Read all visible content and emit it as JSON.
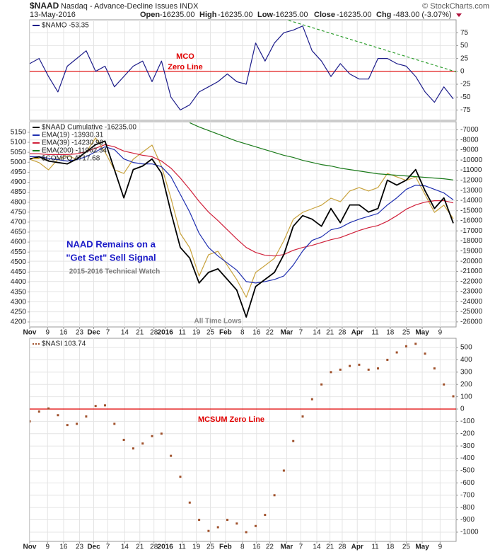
{
  "header": {
    "symbol": "$NAAD",
    "description": "Nasdaq - Advance-Decline Issues INDX",
    "credit": "© StockCharts.com",
    "date": "13-May-2016",
    "quote": [
      {
        "label": "Open",
        "value": "-16235.00"
      },
      {
        "label": "High",
        "value": "-16235.00"
      },
      {
        "label": "Low",
        "value": "-16235.00"
      },
      {
        "label": "Close",
        "value": "-16235.00"
      },
      {
        "label": "Chg",
        "value": "-483.00 (-3.07%)"
      }
    ]
  },
  "annotations": [
    "MCO",
    "Zero Line",
    "NAAD Remains on a",
    "\"Get Set\" Sell Signal",
    "2015-2016 Technical Watch",
    "All Time Lows",
    "MCSUM Zero Line"
  ],
  "chart_data": [
    {
      "type": "line",
      "xlim": [
        0,
        45.3
      ],
      "ylim": [
        -95,
        100
      ],
      "yticks": [
        75,
        50,
        25,
        0,
        -25,
        -50,
        -75
      ],
      "grid": true,
      "series": [
        {
          "name": "$NAMO -53.35",
          "color": "#1c1c8a",
          "values": [
            15,
            25,
            -10,
            -40,
            10,
            25,
            40,
            0,
            10,
            -30,
            -10,
            10,
            20,
            -20,
            20,
            -50,
            -75,
            -65,
            -40,
            -30,
            -20,
            -5,
            -20,
            -25,
            55,
            20,
            55,
            75,
            80,
            88,
            40,
            20,
            -10,
            15,
            -5,
            -15,
            -15,
            25,
            25,
            15,
            10,
            -10,
            -40,
            -60,
            -30,
            -53.35
          ]
        }
      ],
      "hlines": [
        {
          "value": 0,
          "color": "#e00000"
        }
      ],
      "trendline": {
        "x": [
          27.5,
          45.3
        ],
        "y": [
          99,
          -1
        ],
        "color": "#2e9e2e"
      }
    },
    {
      "type": "line",
      "xlim": [
        0,
        45.3
      ],
      "ylim": [
        -26500,
        -6200
      ],
      "yticks": [
        -7000,
        -8000,
        -9000,
        -10000,
        -11000,
        -12000,
        -13000,
        -14000,
        -15000,
        -16000,
        -17000,
        -18000,
        -19000,
        -20000,
        -21000,
        -22000,
        -23000,
        -24000,
        -25000,
        -26000
      ],
      "y2lim": [
        4175,
        5203
      ],
      "y2ticks": [
        5150,
        5100,
        5050,
        5000,
        4950,
        4900,
        4850,
        4800,
        4750,
        4700,
        4650,
        4600,
        4550,
        4500,
        4450,
        4400,
        4350,
        4300,
        4250,
        4200
      ],
      "grid": true,
      "xticks": [
        {
          "value": 0,
          "label": "Nov"
        },
        {
          "value": 1.9,
          "label": "9"
        },
        {
          "value": 3.6,
          "label": "16"
        },
        {
          "value": 5.3,
          "label": "23"
        },
        {
          "value": 6.8,
          "label": "Dec"
        },
        {
          "value": 8.3,
          "label": "7"
        },
        {
          "value": 10.1,
          "label": "14"
        },
        {
          "value": 11.7,
          "label": "21"
        },
        {
          "value": 13.2,
          "label": "28"
        },
        {
          "value": 14.4,
          "label": "2016"
        },
        {
          "value": 16.2,
          "label": "11"
        },
        {
          "value": 17.7,
          "label": "19"
        },
        {
          "value": 19.2,
          "label": "25"
        },
        {
          "value": 20.8,
          "label": "Feb"
        },
        {
          "value": 22.6,
          "label": "8"
        },
        {
          "value": 24.1,
          "label": "16"
        },
        {
          "value": 25.5,
          "label": "22"
        },
        {
          "value": 27.3,
          "label": "Mar"
        },
        {
          "value": 28.8,
          "label": "7"
        },
        {
          "value": 30.5,
          "label": "14"
        },
        {
          "value": 31.9,
          "label": "21"
        },
        {
          "value": 33.2,
          "label": "28"
        },
        {
          "value": 34.8,
          "label": "Apr"
        },
        {
          "value": 36.7,
          "label": "11"
        },
        {
          "value": 38.3,
          "label": "18"
        },
        {
          "value": 40.0,
          "label": "25"
        },
        {
          "value": 41.7,
          "label": "May"
        },
        {
          "value": 43.6,
          "label": "9"
        }
      ],
      "series": [
        {
          "name": "$COMPQ 4717.68",
          "color": "#c8a23c",
          "axis": "y2",
          "values": [
            5015,
            4998,
            4962,
            5015,
            5033,
            5015,
            5051,
            5122,
            5051,
            4962,
            4944,
            5015,
            5051,
            5086,
            4980,
            4820,
            4643,
            4572,
            4430,
            4537,
            4554,
            4483,
            4412,
            4324,
            4448,
            4483,
            4519,
            4607,
            4714,
            4749,
            4767,
            4785,
            4820,
            4802,
            4856,
            4873,
            4856,
            4873,
            4944,
            4927,
            4909,
            4927,
            4838,
            4749,
            4785,
            4717.68
          ]
        },
        {
          "name": "EMA(200) -11962.34",
          "color": "#1a7a1a",
          "values": [
            null,
            null,
            null,
            null,
            null,
            null,
            null,
            null,
            null,
            null,
            null,
            null,
            null,
            null,
            null,
            null,
            null,
            -6300,
            -6720,
            -7070,
            -7420,
            -7770,
            -8120,
            -8400,
            -8680,
            -8960,
            -9240,
            -9520,
            -9730,
            -10020,
            -10230,
            -10440,
            -10580,
            -10790,
            -10930,
            -11070,
            -11210,
            -11350,
            -11420,
            -11490,
            -11560,
            -11630,
            -11700,
            -11770,
            -11840,
            -11962.34
          ]
        },
        {
          "name": "EMA(39) -14230.99",
          "color": "#d0203a",
          "values": [
            -9380,
            -9380,
            -9450,
            -9450,
            -9450,
            -9380,
            -9170,
            -8820,
            -8470,
            -8680,
            -9100,
            -9310,
            -9520,
            -9660,
            -10090,
            -10790,
            -11770,
            -12890,
            -14080,
            -15140,
            -15980,
            -16890,
            -17800,
            -18640,
            -19130,
            -19410,
            -19480,
            -19340,
            -18920,
            -18640,
            -18430,
            -18150,
            -17870,
            -17660,
            -17310,
            -16960,
            -16680,
            -16470,
            -16050,
            -15490,
            -14850,
            -14430,
            -14150,
            -14010,
            -14010,
            -14230.99
          ]
        },
        {
          "name": "EMA(19) -13930.31",
          "color": "#1f2fb0",
          "values": [
            -9660,
            -9660,
            -9810,
            -9950,
            -10090,
            -9950,
            -9660,
            -9170,
            -8680,
            -8960,
            -9880,
            -10230,
            -10370,
            -10370,
            -10650,
            -11630,
            -13380,
            -15140,
            -17240,
            -18640,
            -19480,
            -20180,
            -20880,
            -22010,
            -22150,
            -22010,
            -21800,
            -21450,
            -20390,
            -18990,
            -17940,
            -17590,
            -16890,
            -16680,
            -16190,
            -15840,
            -15560,
            -15280,
            -14430,
            -13730,
            -12890,
            -12470,
            -12540,
            -12890,
            -13240,
            -13930.31
          ]
        },
        {
          "name": "$NAAD Cumulative -16235.00",
          "color": "#000000",
          "values": [
            -9880,
            -9670,
            -10090,
            -10230,
            -10370,
            -9880,
            -9170,
            -8470,
            -8120,
            -10930,
            -13730,
            -10930,
            -10580,
            -9880,
            -11280,
            -15140,
            -18640,
            -19690,
            -22150,
            -21100,
            -20750,
            -21800,
            -22850,
            -25520,
            -22500,
            -21800,
            -21100,
            -19340,
            -16540,
            -15490,
            -15840,
            -16540,
            -14780,
            -16190,
            -14430,
            -14430,
            -15140,
            -14780,
            -11980,
            -12470,
            -11980,
            -10930,
            -13030,
            -14780,
            -13730,
            -16235
          ]
        }
      ]
    },
    {
      "type": "dot",
      "xlim": [
        0,
        45.3
      ],
      "ylim": [
        -1075,
        575
      ],
      "yticks": [
        500,
        400,
        300,
        200,
        100,
        0,
        -100,
        -200,
        -300,
        -400,
        -500,
        -600,
        -700,
        -800,
        -900,
        -1000
      ],
      "grid": true,
      "xticks": [
        {
          "value": 0,
          "label": "Nov"
        },
        {
          "value": 1.9,
          "label": "9"
        },
        {
          "value": 3.6,
          "label": "16"
        },
        {
          "value": 5.3,
          "label": "23"
        },
        {
          "value": 6.8,
          "label": "Dec"
        },
        {
          "value": 8.3,
          "label": "7"
        },
        {
          "value": 10.1,
          "label": "14"
        },
        {
          "value": 11.7,
          "label": "21"
        },
        {
          "value": 13.2,
          "label": "28"
        },
        {
          "value": 14.4,
          "label": "2016"
        },
        {
          "value": 16.2,
          "label": "11"
        },
        {
          "value": 17.7,
          "label": "19"
        },
        {
          "value": 19.2,
          "label": "25"
        },
        {
          "value": 20.8,
          "label": "Feb"
        },
        {
          "value": 22.6,
          "label": "8"
        },
        {
          "value": 24.1,
          "label": "16"
        },
        {
          "value": 25.5,
          "label": "22"
        },
        {
          "value": 27.3,
          "label": "Mar"
        },
        {
          "value": 28.8,
          "label": "7"
        },
        {
          "value": 30.5,
          "label": "14"
        },
        {
          "value": 31.9,
          "label": "21"
        },
        {
          "value": 33.2,
          "label": "28"
        },
        {
          "value": 34.8,
          "label": "Apr"
        },
        {
          "value": 36.7,
          "label": "11"
        },
        {
          "value": 38.3,
          "label": "18"
        },
        {
          "value": 40.0,
          "label": "25"
        },
        {
          "value": 41.7,
          "label": "May"
        },
        {
          "value": 43.6,
          "label": "9"
        }
      ],
      "series": [
        {
          "name": "$NASI 103.74",
          "color": "#a0522d",
          "values": [
            -100,
            -20,
            5,
            -50,
            -130,
            -120,
            -60,
            25,
            30,
            -120,
            -250,
            -320,
            -280,
            -220,
            -200,
            -380,
            -550,
            -760,
            -900,
            -990,
            -960,
            -900,
            -930,
            -1000,
            -950,
            -860,
            -700,
            -500,
            -260,
            -60,
            80,
            200,
            300,
            320,
            350,
            360,
            320,
            330,
            400,
            460,
            510,
            530,
            450,
            330,
            200,
            103.74
          ]
        }
      ],
      "hlines": [
        {
          "value": 0,
          "color": "#e00000"
        }
      ]
    }
  ]
}
